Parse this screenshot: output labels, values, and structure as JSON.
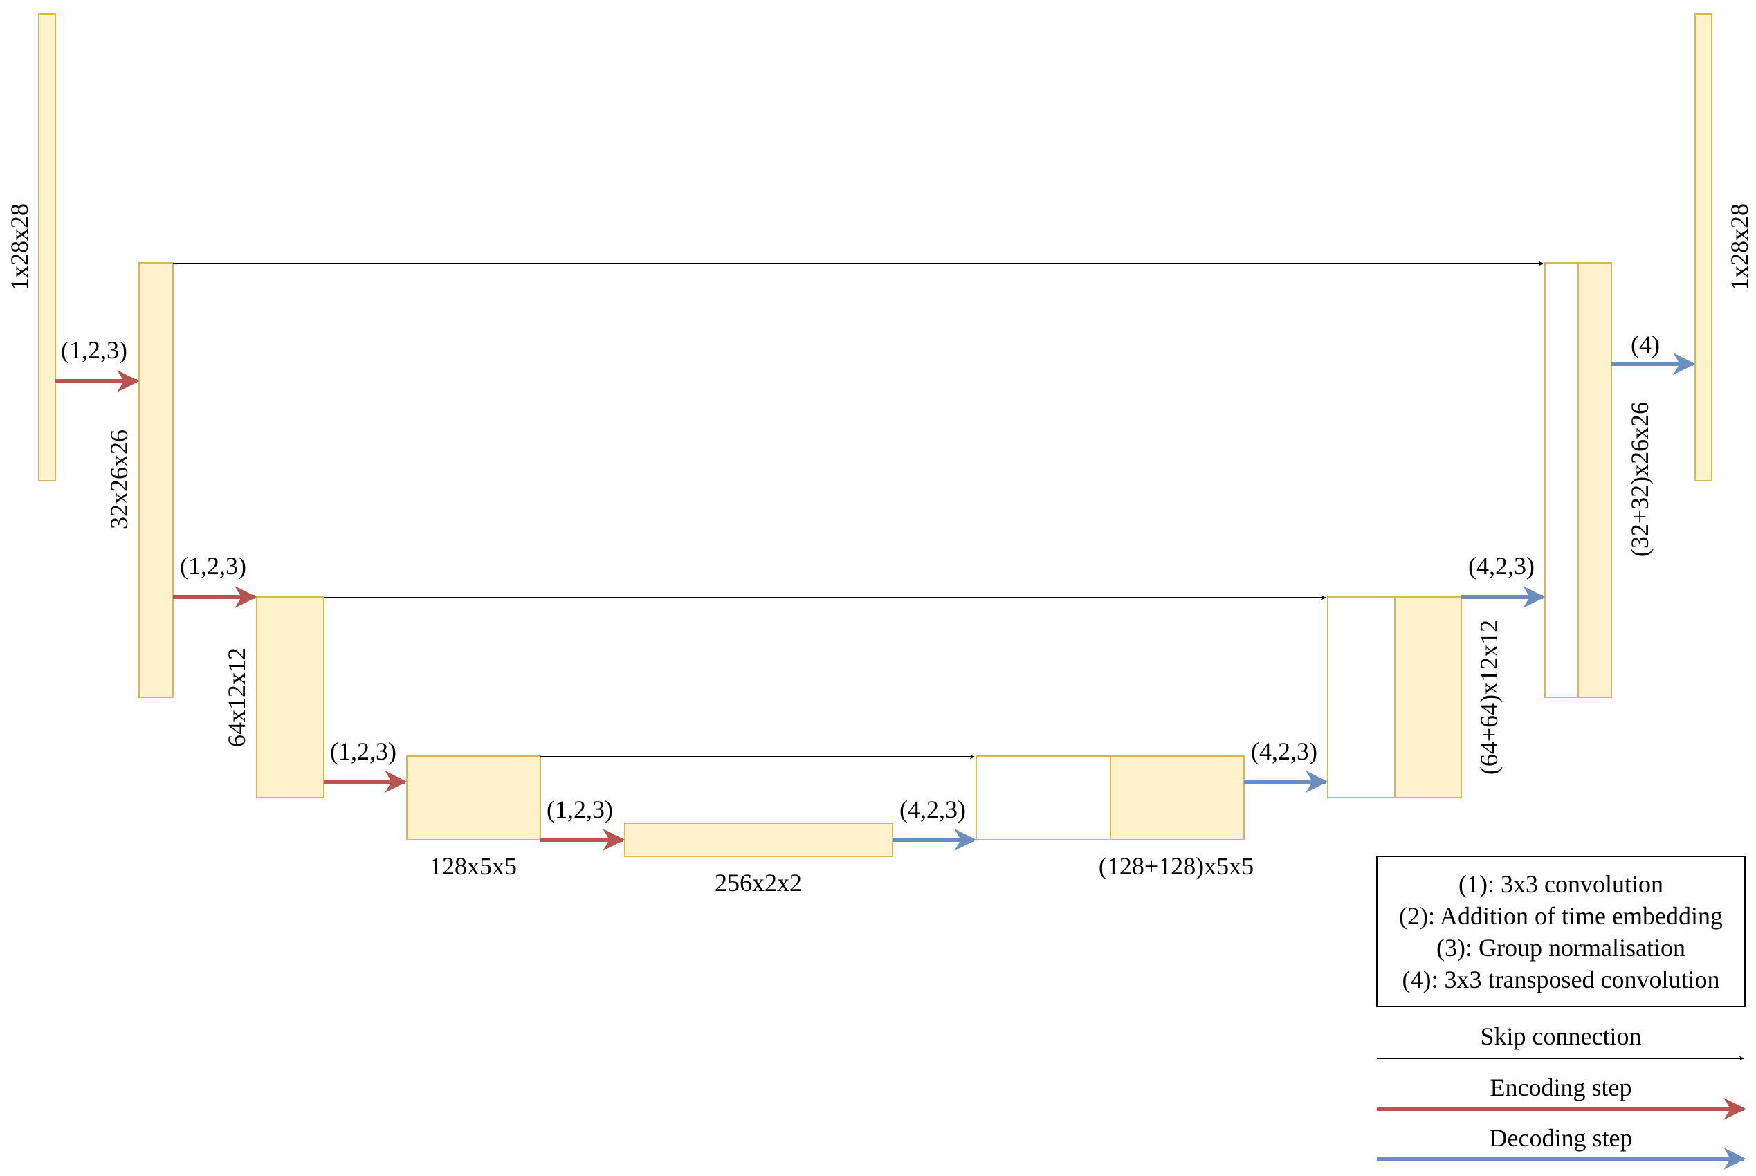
{
  "colors": {
    "block_fill": "#FFF2CC",
    "block_stroke": "#D6B656",
    "empty_fill": "#FFFFFF",
    "skip": "#000000",
    "encoding": "#B85450",
    "decoding": "#6C8EBF"
  },
  "blocks": {
    "input": "1x28x28",
    "enc1": "32x26x26",
    "enc2": "64x12x12",
    "enc3": "128x5x5",
    "bottleneck": "256x2x2",
    "dec3": "(128+128)x5x5",
    "dec2": "(64+64)x12x12",
    "dec1": "(32+32)x26x26",
    "output": "1x28x28"
  },
  "steps": {
    "enc_a": "(1,2,3)",
    "enc_b": "(1,2,3)",
    "enc_c": "(1,2,3)",
    "enc_d": "(1,2,3)",
    "dec_a": "(4,2,3)",
    "dec_b": "(4,2,3)",
    "dec_c": "(4,2,3)",
    "dec_d": "(4)"
  },
  "legend": {
    "ops": [
      "(1): 3x3 convolution",
      "(2): Addition of time embedding",
      "(3): Group normalisation",
      "(4): 3x3 transposed convolution"
    ],
    "skip_connection": "Skip connection",
    "encoding_step": "Encoding step",
    "decoding_step": "Decoding step"
  }
}
